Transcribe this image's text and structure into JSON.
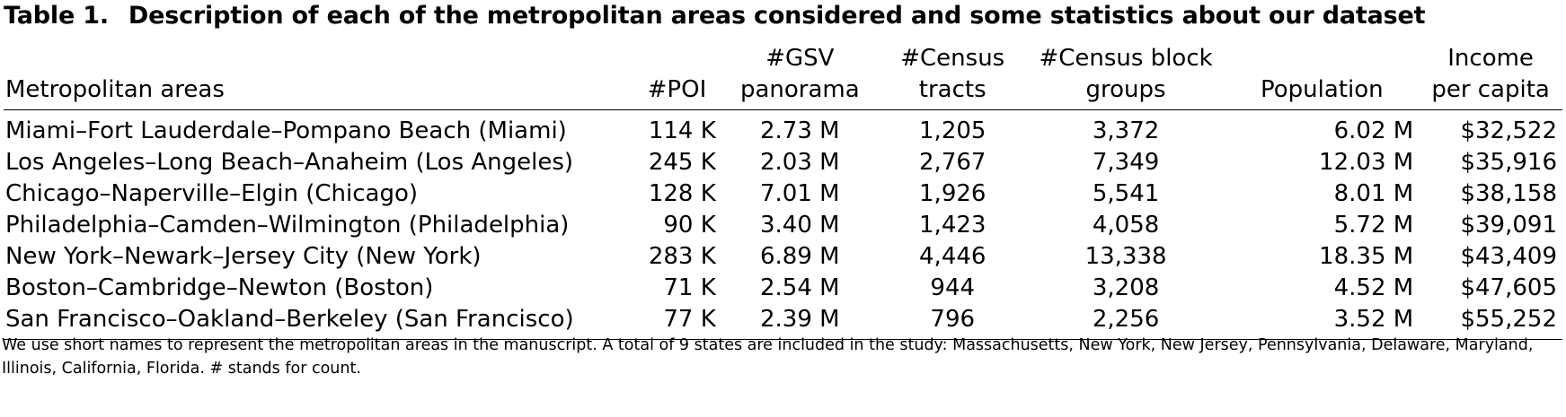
{
  "caption": {
    "label": "Table 1.",
    "title": "Description of each of the metropolitan areas considered and some statistics about our dataset"
  },
  "table": {
    "headers": [
      "Metropolitan areas",
      "#POI",
      "#GSV\npanorama",
      "#Census\ntracts",
      "#Census block\ngroups",
      "Population",
      "Income\nper capita"
    ],
    "rows": [
      [
        "Miami–Fort Lauderdale–Pompano Beach (Miami)",
        "114 K",
        "2.73 M",
        "1,205",
        "3,372",
        "6.02 M",
        "$32,522"
      ],
      [
        "Los Angeles–Long Beach–Anaheim (Los Angeles)",
        "245 K",
        "2.03 M",
        "2,767",
        "7,349",
        "12.03 M",
        "$35,916"
      ],
      [
        "Chicago–Naperville–Elgin (Chicago)",
        "128 K",
        "7.01 M",
        "1,926",
        "5,541",
        "8.01 M",
        "$38,158"
      ],
      [
        "Philadelphia–Camden–Wilmington (Philadelphia)",
        "90 K",
        "3.40 M",
        "1,423",
        "4,058",
        "5.72 M",
        "$39,091"
      ],
      [
        "New York–Newark–Jersey City (New York)",
        "283 K",
        "6.89 M",
        "4,446",
        "13,338",
        "18.35 M",
        "$43,409"
      ],
      [
        "Boston–Cambridge–Newton (Boston)",
        "71 K",
        "2.54 M",
        "944",
        "3,208",
        "4.52 M",
        "$47,605"
      ],
      [
        "San Francisco–Oakland–Berkeley (San Francisco)",
        "77 K",
        "2.39 M",
        "796",
        "2,256",
        "3.52 M",
        "$55,252"
      ]
    ]
  },
  "footnote": "We use short names to represent the metropolitan areas in the manuscript. A total of 9 states are included in the study: Massachusetts, New York, New Jersey, Pennsylvania, Delaware, Maryland, Illinois, California, Florida. # stands for count."
}
